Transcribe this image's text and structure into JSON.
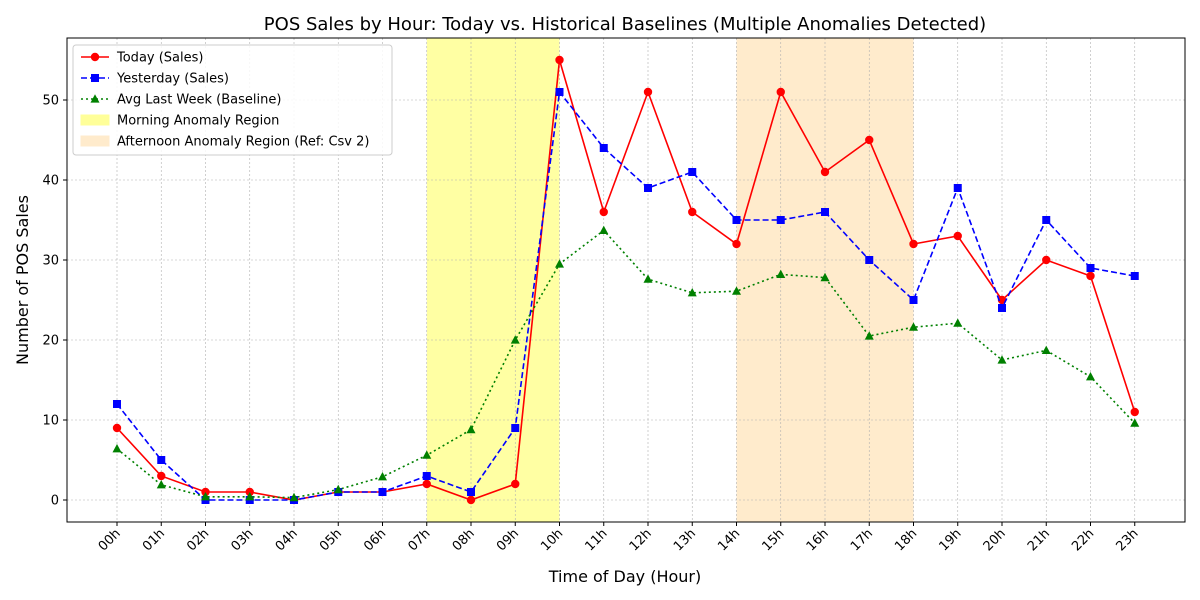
{
  "chart_data": {
    "type": "line",
    "title": "POS Sales by Hour: Today vs. Historical Baselines (Multiple Anomalies Detected)",
    "xlabel": "Time of Day (Hour)",
    "ylabel": "Number of POS Sales",
    "categories": [
      "00h",
      "01h",
      "02h",
      "03h",
      "04h",
      "05h",
      "06h",
      "07h",
      "08h",
      "09h",
      "10h",
      "11h",
      "12h",
      "13h",
      "14h",
      "15h",
      "16h",
      "17h",
      "18h",
      "19h",
      "20h",
      "21h",
      "22h",
      "23h"
    ],
    "ylim": [
      -2.75,
      57.75
    ],
    "yticks": [
      0,
      10,
      20,
      30,
      40,
      50
    ],
    "grid": true,
    "legend_position": "upper left",
    "series": [
      {
        "name": "Today (Sales)",
        "color": "#ff0000",
        "style": "solid",
        "marker": "circle",
        "values": [
          9,
          3,
          1,
          1,
          0,
          1,
          1,
          2,
          0,
          2,
          55,
          36,
          51,
          36,
          32,
          51,
          41,
          45,
          32,
          33,
          25,
          30,
          28,
          11
        ]
      },
      {
        "name": "Yesterday (Sales)",
        "color": "#0000ff",
        "style": "dashed",
        "marker": "square",
        "values": [
          12,
          5,
          0,
          0,
          0,
          1,
          1,
          3,
          1,
          9,
          51,
          44,
          39,
          41,
          35,
          35,
          36,
          30,
          25,
          39,
          24,
          35,
          29,
          28
        ]
      },
      {
        "name": "Avg Last Week (Baseline)",
        "color": "#008000",
        "style": "dotted",
        "marker": "triangle",
        "values": [
          6.4,
          1.9,
          0.4,
          0.4,
          0.3,
          1.3,
          2.9,
          5.6,
          8.8,
          20.0,
          29.5,
          33.7,
          27.6,
          25.9,
          26.1,
          28.2,
          27.8,
          20.5,
          21.6,
          22.1,
          17.5,
          18.7,
          15.4,
          9.6
        ]
      }
    ],
    "regions": [
      {
        "name": "Morning Anomaly Region",
        "start": "07h",
        "end": "10h",
        "color": "#ffff99"
      },
      {
        "name": "Afternoon Anomaly Region (Ref: Csv 2)",
        "start": "14h",
        "end": "18h",
        "color": "#ffebcc"
      }
    ]
  }
}
